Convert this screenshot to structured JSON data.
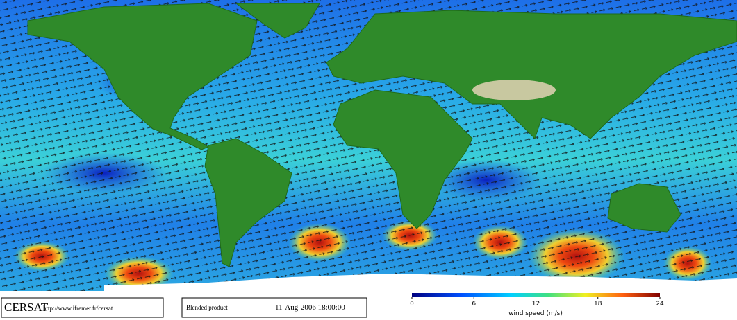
{
  "header": {
    "logo": "CERSAT",
    "url": "http://www.ifremer.fr/cersat",
    "product": "Blended product",
    "date": "11-Aug-2006 18:00:00"
  },
  "colorbar": {
    "label": "wind speed (m/s)",
    "range": [
      0,
      24
    ],
    "ticks": [
      0,
      6,
      12,
      18,
      24
    ]
  }
}
